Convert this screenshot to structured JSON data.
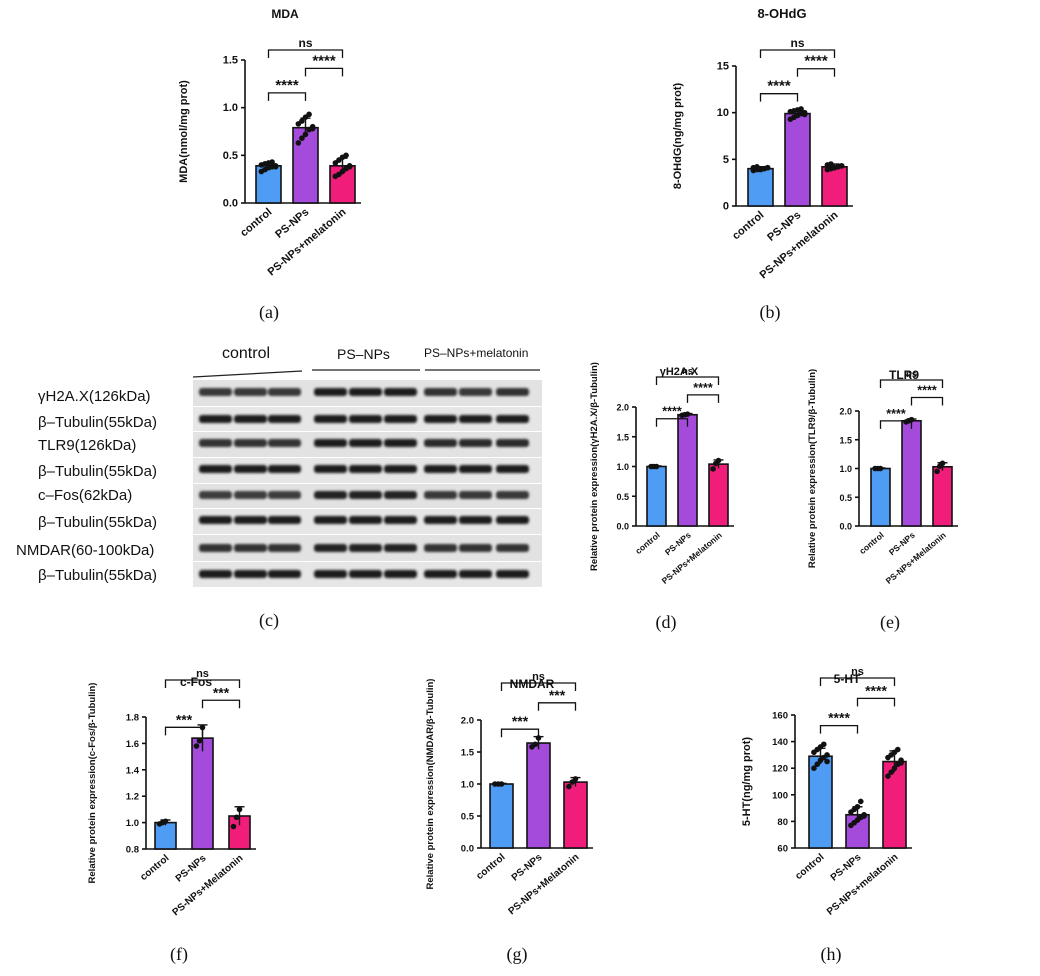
{
  "blot": {
    "groups": [
      "control",
      "PS–NPs",
      "PS–NPs+melatonin"
    ],
    "rows": [
      "γH2A.X(126kDa)",
      "β–Tubulin(55kDa)",
      "TLR9(126kDa)",
      "β–Tubulin(55kDa)",
      "c–Fos(62kDa)",
      "β–Tubulin(55kDa)",
      "NMDAR(60-100kDa)",
      "β–Tubulin(55kDa)"
    ],
    "panel_label": "(c)"
  },
  "chart_data": [
    {
      "id": "a",
      "panel_label": "(a)",
      "type": "bar",
      "title": "MDA",
      "ylabel": "MDA(nmol/mg prot)",
      "ylim": [
        0,
        1.5
      ],
      "yticks": [
        0,
        0.5,
        1.0,
        1.5
      ],
      "ytick_labels": [
        "0.0",
        "0.5",
        "1.0",
        "1.5"
      ],
      "categories": [
        "control",
        "PS-NPs",
        "PS-NPs+melatonin"
      ],
      "values": [
        0.39,
        0.79,
        0.39
      ],
      "errors": [
        0.04,
        0.1,
        0.08
      ],
      "points": [
        [
          0.33,
          0.35,
          0.37,
          0.38,
          0.39,
          0.4,
          0.41,
          0.42,
          0.43,
          0.38
        ],
        [
          0.63,
          0.68,
          0.72,
          0.77,
          0.8,
          0.83,
          0.86,
          0.9,
          0.93,
          0.78
        ],
        [
          0.28,
          0.3,
          0.33,
          0.36,
          0.39,
          0.42,
          0.45,
          0.48,
          0.5,
          0.38
        ]
      ],
      "bar_colors": [
        "#4f9cf5",
        "#a44bdc",
        "#f01e7a"
      ],
      "significance": [
        {
          "from": 0,
          "to": 1,
          "label": "****"
        },
        {
          "from": 1,
          "to": 2,
          "label": "****"
        },
        {
          "from": 0,
          "to": 2,
          "label": "ns"
        }
      ]
    },
    {
      "id": "b",
      "panel_label": "(b)",
      "type": "bar",
      "title": "8-OHdG",
      "ylabel": "8-OHdG(ng/mg prot)",
      "ylim": [
        0,
        15
      ],
      "yticks": [
        0,
        5,
        10,
        15
      ],
      "ytick_labels": [
        "0",
        "5",
        "10",
        "15"
      ],
      "categories": [
        "control",
        "PS-NPs",
        "PS-NPs+melatonin"
      ],
      "values": [
        4.0,
        9.9,
        4.2
      ],
      "errors": [
        0.2,
        0.4,
        0.3
      ],
      "points": [
        [
          3.8,
          3.9,
          4.0,
          4.0,
          4.1,
          4.1,
          4.2,
          3.9,
          4.0,
          4.1
        ],
        [
          9.3,
          9.5,
          9.7,
          9.9,
          10.0,
          10.1,
          10.2,
          10.3,
          10.4,
          9.8
        ],
        [
          3.9,
          4.0,
          4.1,
          4.2,
          4.3,
          4.4,
          4.5,
          4.1,
          4.2,
          4.3
        ]
      ],
      "bar_colors": [
        "#4f9cf5",
        "#a44bdc",
        "#f01e7a"
      ],
      "significance": [
        {
          "from": 0,
          "to": 1,
          "label": "****"
        },
        {
          "from": 1,
          "to": 2,
          "label": "****"
        },
        {
          "from": 0,
          "to": 2,
          "label": "ns"
        }
      ]
    },
    {
      "id": "d",
      "panel_label": "(d)",
      "type": "bar",
      "title": "γH2A.X",
      "ylabel": "Relative protein expression(γH2A.X/β-Tubulin)",
      "ylim": [
        0,
        2.0
      ],
      "yticks": [
        0,
        0.5,
        1.0,
        1.5,
        2.0
      ],
      "ytick_labels": [
        "0.0",
        "0.5",
        "1.0",
        "1.5",
        "2.0"
      ],
      "categories": [
        "control",
        "PS-NPs",
        "PS-NPs+Melatonin"
      ],
      "values": [
        1.0,
        1.87,
        1.04
      ],
      "errors": [
        0.01,
        0.02,
        0.07
      ],
      "points": [
        [
          1.0,
          1.0,
          1.0
        ],
        [
          1.86,
          1.87,
          1.88
        ],
        [
          0.96,
          1.05,
          1.1
        ]
      ],
      "bar_colors": [
        "#4f9cf5",
        "#a44bdc",
        "#f01e7a"
      ],
      "significance": [
        {
          "from": 0,
          "to": 1,
          "label": "****"
        },
        {
          "from": 1,
          "to": 2,
          "label": "****"
        },
        {
          "from": 0,
          "to": 2,
          "label": "ns"
        }
      ]
    },
    {
      "id": "e",
      "panel_label": "(e)",
      "type": "bar",
      "title": "TLR9",
      "ylabel": "Relative protein expression(TLR9/β-Tubulin)",
      "ylim": [
        0,
        2.0
      ],
      "yticks": [
        0,
        0.5,
        1.0,
        1.5,
        2.0
      ],
      "ytick_labels": [
        "0.0",
        "0.5",
        "1.0",
        "1.5",
        "2.0"
      ],
      "categories": [
        "control",
        "PS-NPs",
        "PS-NPs+Melatonin"
      ],
      "values": [
        1.0,
        1.83,
        1.03
      ],
      "errors": [
        0.01,
        0.03,
        0.07
      ],
      "points": [
        [
          1.0,
          1.0,
          1.0
        ],
        [
          1.81,
          1.83,
          1.85
        ],
        [
          0.95,
          1.04,
          1.09
        ]
      ],
      "bar_colors": [
        "#4f9cf5",
        "#a44bdc",
        "#f01e7a"
      ],
      "significance": [
        {
          "from": 0,
          "to": 1,
          "label": "****"
        },
        {
          "from": 1,
          "to": 2,
          "label": "****"
        },
        {
          "from": 0,
          "to": 2,
          "label": "ns"
        }
      ]
    },
    {
      "id": "f",
      "panel_label": "(f)",
      "type": "bar",
      "title": "c-Fos",
      "ylabel": "Relative protein expression(c-Fos/β-Tubulin)",
      "ylim": [
        0.8,
        1.8
      ],
      "yticks": [
        0.8,
        1.0,
        1.2,
        1.4,
        1.6,
        1.8
      ],
      "ytick_labels": [
        "0.8",
        "1.0",
        "1.2",
        "1.4",
        "1.6",
        "1.8"
      ],
      "categories": [
        "control",
        "PS-NPs",
        "PS-NPs+Melatonin"
      ],
      "values": [
        1.0,
        1.64,
        1.05
      ],
      "errors": [
        0.02,
        0.1,
        0.07
      ],
      "points": [
        [
          0.99,
          1.0,
          1.01
        ],
        [
          1.58,
          1.62,
          1.72
        ],
        [
          0.97,
          1.04,
          1.1
        ]
      ],
      "bar_colors": [
        "#4f9cf5",
        "#a44bdc",
        "#f01e7a"
      ],
      "significance": [
        {
          "from": 0,
          "to": 1,
          "label": "***"
        },
        {
          "from": 1,
          "to": 2,
          "label": "***"
        },
        {
          "from": 0,
          "to": 2,
          "label": "ns"
        }
      ]
    },
    {
      "id": "g",
      "panel_label": "(g)",
      "type": "bar",
      "title": "NMDAR",
      "ylabel": "Relative protein expression(NMDAR/β-Tubulin)",
      "ylim": [
        0,
        2.0
      ],
      "yticks": [
        0,
        0.5,
        1.0,
        1.5,
        2.0
      ],
      "ytick_labels": [
        "0.0",
        "0.5",
        "1.0",
        "1.5",
        "2.0"
      ],
      "categories": [
        "control",
        "PS-NPs",
        "PS-NPs+Melatonin"
      ],
      "values": [
        1.0,
        1.64,
        1.03
      ],
      "errors": [
        0.01,
        0.1,
        0.07
      ],
      "points": [
        [
          1.0,
          1.0,
          1.0
        ],
        [
          1.58,
          1.62,
          1.72
        ],
        [
          0.96,
          1.03,
          1.08
        ]
      ],
      "bar_colors": [
        "#4f9cf5",
        "#a44bdc",
        "#f01e7a"
      ],
      "significance": [
        {
          "from": 0,
          "to": 1,
          "label": "***"
        },
        {
          "from": 1,
          "to": 2,
          "label": "***"
        },
        {
          "from": 0,
          "to": 2,
          "label": "ns"
        }
      ]
    },
    {
      "id": "h",
      "panel_label": "(h)",
      "type": "bar",
      "title": "5-HT",
      "ylabel": "5-HT(ng/mg prot)",
      "ylim": [
        60,
        160
      ],
      "yticks": [
        60,
        80,
        100,
        120,
        140,
        160
      ],
      "ytick_labels": [
        "60",
        "80",
        "100",
        "120",
        "140",
        "160"
      ],
      "categories": [
        "control",
        "PS-NPs",
        "PS-NPs+melatonin"
      ],
      "values": [
        129,
        85,
        125
      ],
      "errors": [
        6,
        6,
        8
      ],
      "points": [
        [
          120,
          123,
          126,
          128,
          130,
          132,
          134,
          136,
          138,
          125
        ],
        [
          77,
          79,
          81,
          83,
          85,
          87,
          89,
          91,
          95,
          84
        ],
        [
          114,
          117,
          120,
          123,
          126,
          128,
          130,
          132,
          134,
          124
        ]
      ],
      "bar_colors": [
        "#4f9cf5",
        "#a44bdc",
        "#f01e7a"
      ],
      "significance": [
        {
          "from": 0,
          "to": 1,
          "label": "****"
        },
        {
          "from": 1,
          "to": 2,
          "label": "****"
        },
        {
          "from": 0,
          "to": 2,
          "label": "ns"
        }
      ]
    }
  ]
}
